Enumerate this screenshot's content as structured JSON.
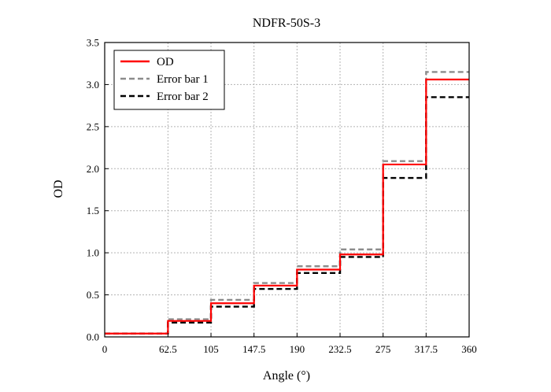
{
  "chart_data": {
    "type": "line",
    "title": "NDFR-50S-3",
    "xlabel": "Angle (°)",
    "ylabel": "OD",
    "xlim": [
      0,
      360
    ],
    "ylim": [
      0,
      3.5
    ],
    "xticks": [
      0,
      62.5,
      105,
      147.5,
      190,
      232.5,
      275,
      317.5,
      360
    ],
    "xtick_labels": [
      "0",
      "62.5",
      "105",
      "147.5",
      "190",
      "232.5",
      "275",
      "317.5",
      "360"
    ],
    "yticks": [
      0,
      0.5,
      1.0,
      1.5,
      2.0,
      2.5,
      3.0,
      3.5
    ],
    "ytick_labels": [
      "0.0",
      "0.5",
      "1.0",
      "1.5",
      "2.0",
      "2.5",
      "3.0",
      "3.5"
    ],
    "grid": true,
    "legend_position": "top-left",
    "step_edges": [
      0,
      62.5,
      105,
      147.5,
      190,
      232.5,
      275,
      317.5,
      360
    ],
    "series": [
      {
        "name": "OD",
        "style": "solid",
        "color": "#ff0000",
        "values": [
          0.04,
          0.19,
          0.4,
          0.61,
          0.8,
          0.98,
          2.05,
          3.06
        ]
      },
      {
        "name": "Error bar 1",
        "style": "dashed",
        "color": "#8c8c8c",
        "values": [
          0.04,
          0.21,
          0.44,
          0.64,
          0.84,
          1.04,
          2.09,
          3.15
        ]
      },
      {
        "name": "Error bar 2",
        "style": "dashed",
        "color": "#000000",
        "values": [
          0.04,
          0.17,
          0.36,
          0.57,
          0.76,
          0.95,
          1.89,
          2.85
        ]
      }
    ]
  }
}
